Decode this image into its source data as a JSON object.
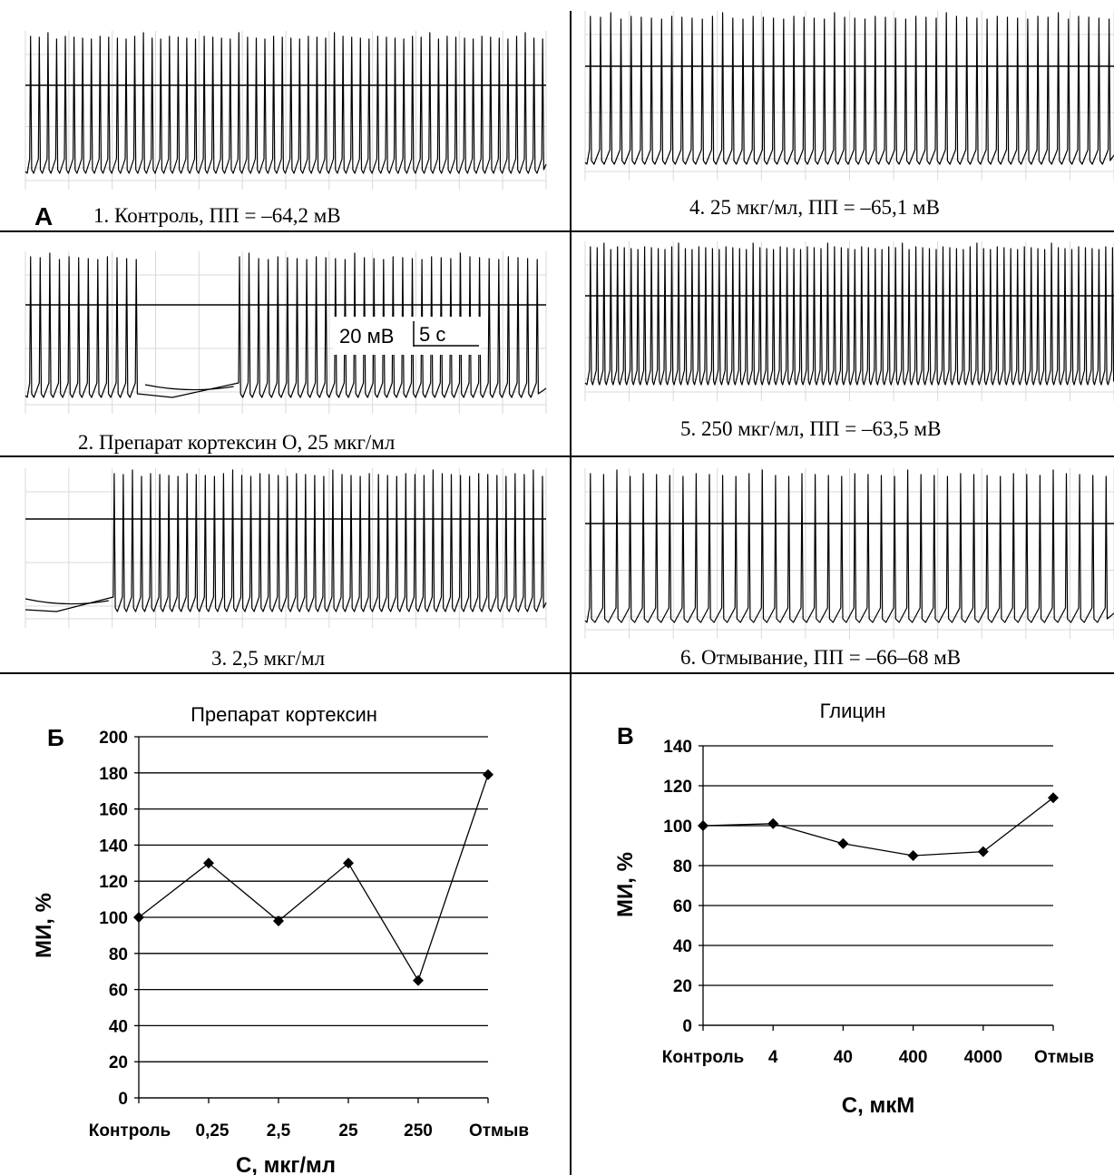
{
  "panel_a": {
    "letter": "А",
    "scale_bar": {
      "voltage": "20 мВ",
      "time": "5 с"
    },
    "traces": [
      {
        "caption": "1. Контроль, ПП = –64,2 мВ",
        "spike_count": 60,
        "pauses": []
      },
      {
        "caption": "2. Препарат кортексин О,  25 мкг/мл",
        "spike_count": 45,
        "pauses": [
          [
            0.23,
            0.4
          ]
        ]
      },
      {
        "caption": "3. 2,5 мкг/мл",
        "spike_count": 48,
        "pauses": [
          [
            0.0,
            0.16
          ]
        ]
      },
      {
        "caption": "4. 25 мкг/мл, ПП = –65,1 мВ",
        "spike_count": 52,
        "pauses": []
      },
      {
        "caption": "5. 250 мкг/мл, ПП = –63,5 мВ",
        "spike_count": 78,
        "pauses": []
      },
      {
        "caption": "6. Отмывание, ПП = –66–68 мВ",
        "spike_count": 40,
        "pauses": []
      }
    ]
  },
  "chart_data": [
    {
      "type": "line",
      "letter": "Б",
      "title": "Препарат кортексин",
      "xlabel": "С, мкг/мл",
      "ylabel": "МИ, %",
      "categories": [
        "Контроль",
        "0,25",
        "2,5",
        "25",
        "250",
        "Отмыв"
      ],
      "values": [
        100,
        130,
        98,
        130,
        65,
        179
      ],
      "ylim": [
        0,
        200
      ],
      "yticks": [
        0,
        20,
        40,
        60,
        80,
        100,
        120,
        140,
        160,
        180,
        200
      ],
      "grid": true,
      "line_color": "#000000"
    },
    {
      "type": "line",
      "letter": "В",
      "title": "Глицин",
      "xlabel": "С, мкМ",
      "ylabel": "МИ, %",
      "categories": [
        "Контроль",
        "4",
        "40",
        "400",
        "4000",
        "Отмыв"
      ],
      "values": [
        100,
        101,
        91,
        85,
        87,
        114
      ],
      "ylim": [
        0,
        140
      ],
      "yticks": [
        0,
        20,
        40,
        60,
        80,
        100,
        120,
        140
      ],
      "grid": true,
      "line_color": "#000000"
    }
  ]
}
